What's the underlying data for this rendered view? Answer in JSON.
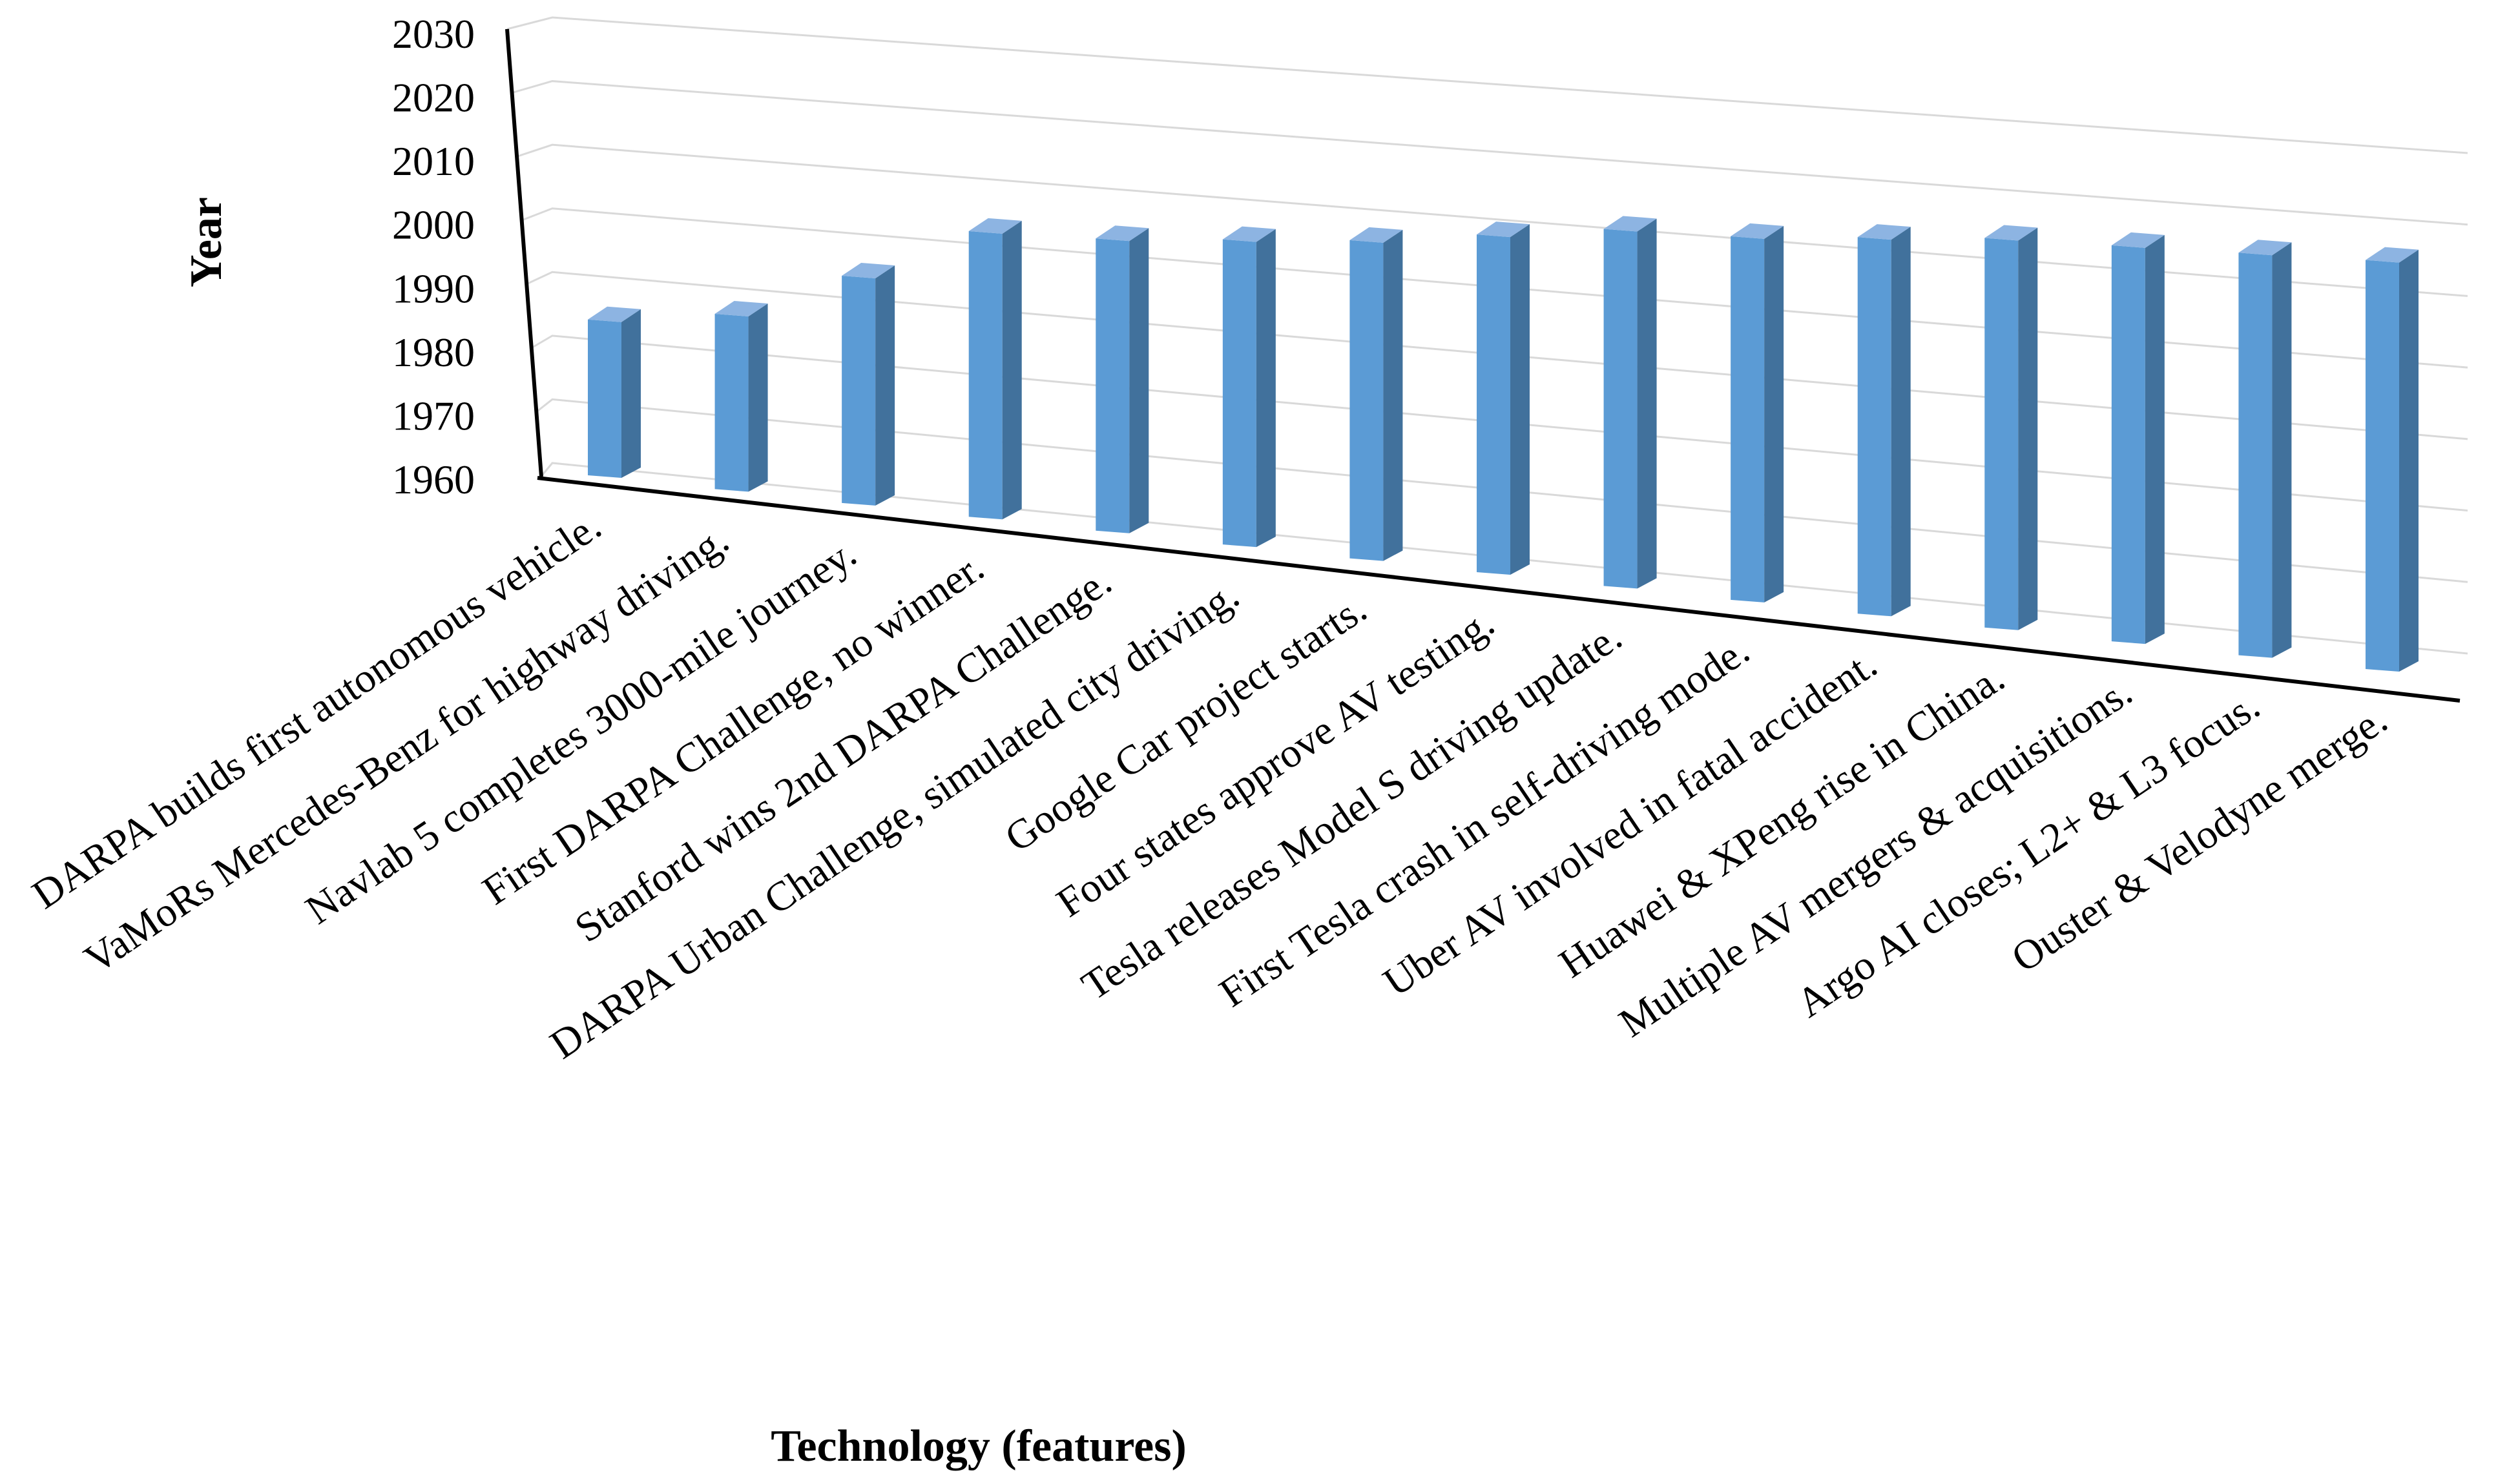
{
  "chart_data": {
    "type": "bar",
    "title": "",
    "xlabel": "Technology (features)",
    "ylabel": "Year",
    "ylim": [
      1960,
      2030
    ],
    "yticks": [
      "1960",
      "1970",
      "1980",
      "1990",
      "2000",
      "2010",
      "2020",
      "2030"
    ],
    "grid": true,
    "legend": "none",
    "bar_color": "#5b9bd5",
    "bar_side_color": "#41719c",
    "bar_top_color": "#8db4e2",
    "categories": [
      "DARPA builds first autonomous vehicle.",
      "VaMoRs Mercedes-Benz for highway driving.",
      "Navlab 5 completes 3000-mile journey.",
      "First DARPA Challenge, no winner.",
      "Stanford wins 2nd DARPA Challenge.",
      "DARPA Urban Challenge, simulated city driving.",
      "Google Car project starts.",
      "Four states approve AV testing.",
      "Tesla releases Model S driving update.",
      "First Tesla crash in self-driving mode.",
      "Uber AV involved in fatal accident.",
      "Huawei & XPeng rise in China.",
      "Multiple AV mergers & acquisitions.",
      "Argo AI closes; L2+ & L3 focus.",
      "Ouster & Velodyne merge."
    ],
    "values": [
      1984,
      1987,
      1995,
      2004,
      2005,
      2007,
      2009,
      2012,
      2015,
      2016,
      2018,
      2020,
      2021,
      2022,
      2023
    ]
  }
}
